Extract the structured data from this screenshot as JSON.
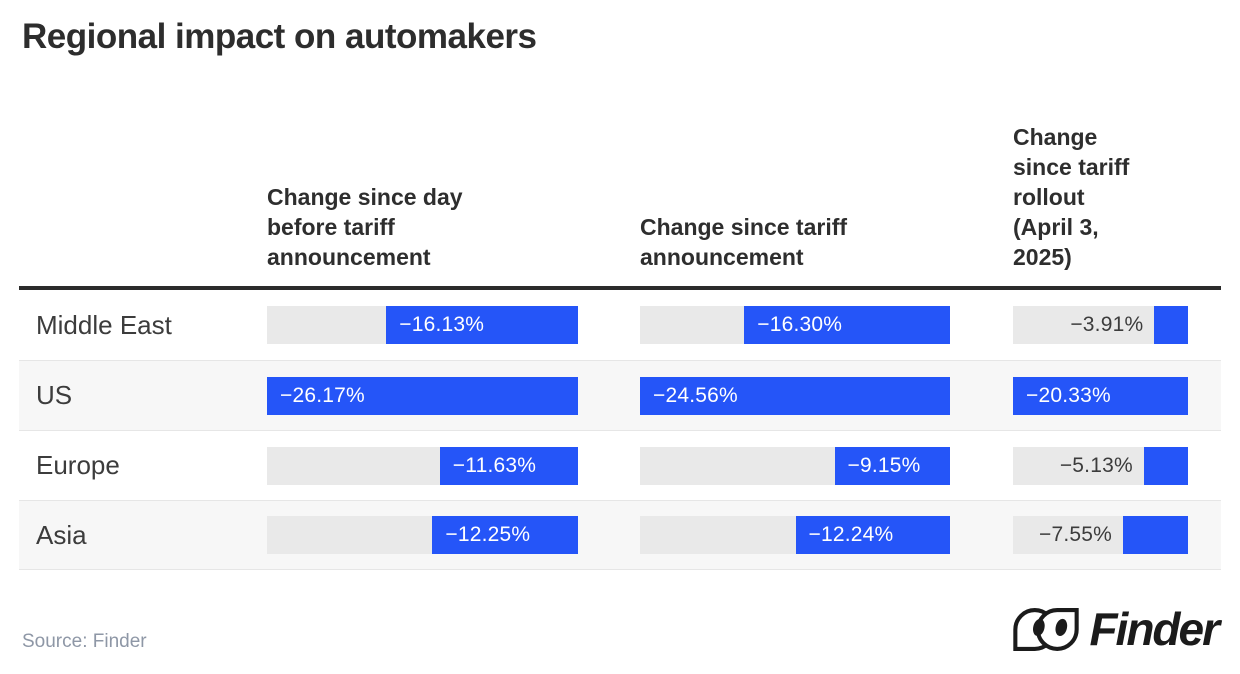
{
  "title": "Regional impact on automakers",
  "source": "Source: Finder",
  "brand": "Finder",
  "colors": {
    "bar_blue": "#2555f8",
    "track_gray": "#e9e9e9",
    "row_band_gray": "#f7f7f7",
    "header_rule_dark": "#2b2b2b",
    "text_dark": "#2e2e2e",
    "value_inside_text": "#ffffff",
    "value_outside_text": "#3c3c3c",
    "source_gray": "#8e97a6"
  },
  "columns": [
    {
      "header_lines": [
        "Change since day",
        "before tariff",
        "announcement"
      ]
    },
    {
      "header_lines": [
        "Change since tariff",
        "announcement"
      ]
    },
    {
      "header_lines": [
        "Change",
        "since tariff",
        "rollout",
        "(April 3,",
        "2025)"
      ]
    }
  ],
  "chart_data": {
    "type": "bar",
    "orientation": "horizontal",
    "title": "Regional impact on automakers",
    "categories": [
      "Middle East",
      "US",
      "Europe",
      "Asia"
    ],
    "series": [
      {
        "name": "Change since day before tariff announcement",
        "values": [
          -16.13,
          -26.17,
          -11.63,
          -12.25
        ],
        "labels": [
          "−16.13%",
          "−26.17%",
          "−11.63%",
          "−12.25%"
        ]
      },
      {
        "name": "Change since tariff announcement",
        "values": [
          -16.3,
          -24.56,
          -9.15,
          -12.24
        ],
        "labels": [
          "−16.30%",
          "−24.56%",
          "−9.15%",
          "−12.24%"
        ]
      },
      {
        "name": "Change since tariff rollout (April 3, 2025)",
        "values": [
          -3.91,
          -20.33,
          -5.13,
          -7.55
        ],
        "labels": [
          "−3.91%",
          "−20.33%",
          "−5.13%",
          "−7.55%"
        ]
      }
    ],
    "value_format": "percent",
    "layout_hints": {
      "bars_grow_leftward_from_right_edge": true,
      "each_column_scaled_to_its_own_max_abs_value": true,
      "grid": "off",
      "legend": "column headers above each bar group"
    }
  }
}
